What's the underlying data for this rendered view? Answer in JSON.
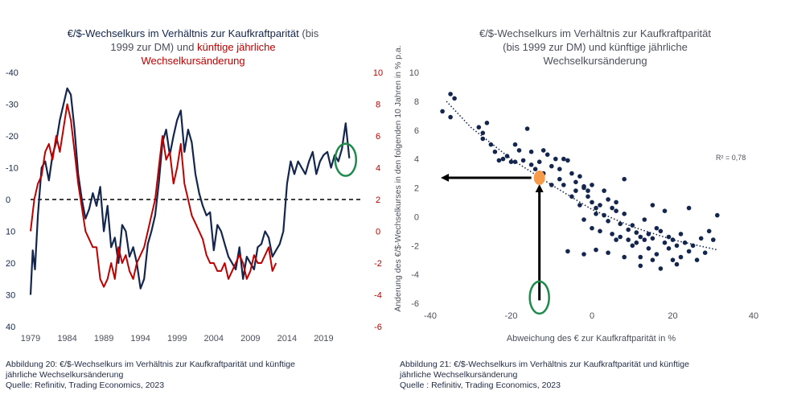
{
  "chart_data": [
    {
      "type": "line",
      "title_navy_1": "€/$-Wechselkurs im Verhältnis zur Kaufkraftparität",
      "title_gray_1": "(bis",
      "title_gray_2": "1999 zur DM) und",
      "title_red_1": "künftige jährliche",
      "title_red_2": "Wechselkursänderung",
      "x_ticks": [
        "1979",
        "1984",
        "1989",
        "1994",
        "1999",
        "2004",
        "2009",
        "2014",
        "2019"
      ],
      "left_axis_ticks": [
        "-40",
        "-30",
        "-20",
        "-10",
        "0",
        "10",
        "20",
        "30",
        "40"
      ],
      "right_axis_ticks": [
        "10",
        "8",
        "6",
        "4",
        "2",
        "0",
        "-2",
        "-4",
        "-6"
      ],
      "ylim_left": [
        40,
        -40
      ],
      "ylim_right": [
        -6,
        10
      ],
      "xlim": [
        1979,
        2024
      ],
      "series": [
        {
          "name": "€/$-Wechselkurs vs. Kaufkraftparität",
          "axis": "left",
          "color": "#14264d",
          "x": [
            1979,
            1979.3,
            1979.6,
            1980,
            1980.5,
            1981,
            1981.5,
            1982,
            1982.5,
            1983,
            1983.5,
            1984,
            1984.5,
            1985,
            1985.5,
            1986,
            1986.5,
            1987,
            1987.5,
            1988,
            1988.5,
            1989,
            1989.5,
            1990,
            1990.5,
            1991,
            1991.5,
            1992,
            1992.5,
            1993,
            1993.5,
            1994,
            1994.5,
            1995,
            1995.5,
            1996,
            1996.5,
            1997,
            1997.5,
            1998,
            1998.5,
            1999,
            1999.5,
            2000,
            2000.5,
            2001,
            2001.5,
            2002,
            2002.5,
            2003,
            2003.5,
            2004,
            2004.5,
            2005,
            2005.5,
            2006,
            2006.5,
            2007,
            2007.5,
            2008,
            2008.5,
            2009,
            2009.5,
            2010,
            2010.5,
            2011,
            2011.5,
            2012,
            2012.5,
            2013,
            2013.5,
            2014,
            2014.5,
            2015,
            2015.5,
            2016,
            2016.5,
            2017,
            2017.5,
            2018,
            2018.5,
            2019,
            2019.5,
            2020,
            2020.5,
            2021,
            2021.5,
            2022,
            2022.5
          ],
          "values": [
            30,
            16,
            22,
            5,
            -10,
            -12,
            -6,
            -14,
            -18,
            -25,
            -30,
            -35,
            -33,
            -22,
            -8,
            0,
            6,
            3,
            -2,
            2,
            -4,
            10,
            2,
            15,
            12,
            20,
            8,
            10,
            18,
            15,
            20,
            28,
            25,
            14,
            10,
            5,
            -5,
            -18,
            -22,
            -14,
            -20,
            -25,
            -28,
            -15,
            -22,
            -18,
            -8,
            -2,
            2,
            5,
            4,
            16,
            8,
            10,
            14,
            18,
            20,
            22,
            15,
            25,
            18,
            20,
            22,
            15,
            14,
            10,
            12,
            18,
            16,
            14,
            10,
            -5,
            -12,
            -8,
            -12,
            -10,
            -8,
            -12,
            -15,
            -8,
            -12,
            -14,
            -15,
            -10,
            -14,
            -12,
            -16,
            -24,
            -13
          ]
        },
        {
          "name": "künftige jährliche Wechselkursänderung",
          "axis": "right",
          "color": "#c00000",
          "x": [
            1979,
            1979.5,
            1980,
            1980.5,
            1981,
            1981.5,
            1982,
            1982.5,
            1983,
            1983.5,
            1984,
            1984.5,
            1985,
            1985.5,
            1986,
            1986.5,
            1987,
            1987.5,
            1988,
            1988.5,
            1989,
            1989.5,
            1990,
            1990.5,
            1991,
            1991.5,
            1992,
            1992.5,
            1993,
            1993.5,
            1994,
            1994.5,
            1995,
            1995.5,
            1996,
            1996.5,
            1997,
            1997.5,
            1998,
            1998.5,
            1999,
            1999.5,
            2000,
            2000.5,
            2001,
            2001.5,
            2002,
            2002.5,
            2003,
            2003.5,
            2004,
            2004.5,
            2005,
            2005.5,
            2006,
            2006.5,
            2007,
            2007.5,
            2008,
            2008.5,
            2009,
            2009.5,
            2010,
            2010.5,
            2011,
            2011.5,
            2012,
            2012.5
          ],
          "values": [
            0,
            2,
            3,
            3.5,
            5,
            5.5,
            4.5,
            6,
            5,
            6.5,
            8,
            7,
            5,
            3,
            1.5,
            0,
            -0.5,
            -1,
            -1,
            -3,
            -3.5,
            -3,
            -2,
            -3,
            -1,
            -2,
            -1.5,
            -2.5,
            -3,
            -2,
            -1.5,
            -1,
            0,
            1,
            2,
            4,
            6,
            4.5,
            5,
            3,
            4,
            5.5,
            3,
            2,
            1,
            0.5,
            0,
            -0.5,
            -1.5,
            -2,
            -2,
            -2.5,
            -2.5,
            -2,
            -3,
            -2.5,
            -2,
            -1.5,
            -2,
            -3,
            -2.5,
            -1.5,
            -2,
            -2,
            -1.5,
            -1,
            -2.5,
            -2
          ]
        }
      ],
      "zero_line": true,
      "annotation": "green ellipse around latest navy values (2021-2023)",
      "caption_line1": "Abbildung 20: €/$-Wechselkurs im Verhältnis zur Kaufkraftparität und künftige",
      "caption_line2": "jährliche Wechselkursänderung",
      "caption_line3": "Quelle: Refinitiv, Trading Economics, 2023"
    },
    {
      "type": "scatter",
      "title_line1": "€/$-Wechselkurs im Verhältnis zur Kaufkraftparität",
      "title_line2": "(bis 1999 zur DM) und  künftige jährliche",
      "title_line3": "Wechselkursänderung",
      "xlabel": "Abweichung des €  zur Kaufkraftparität in %",
      "ylabel": "Änderung des €/$-Wechselkurses in den folgenden 10 Jahren in % p.a.",
      "x_ticks": [
        "-40",
        "-20",
        "0",
        "20",
        "40"
      ],
      "y_ticks": [
        "10",
        "8",
        "6",
        "4",
        "2",
        "0",
        "-2",
        "-4",
        "-6"
      ],
      "xlim": [
        -40,
        40
      ],
      "ylim": [
        -6,
        10
      ],
      "r2_label": "R² = 0,78",
      "trendline": [
        [
          -36,
          8
        ],
        [
          -30,
          6.2
        ],
        [
          -20,
          4
        ],
        [
          -10,
          2.2
        ],
        [
          0,
          0.5
        ],
        [
          10,
          -0.7
        ],
        [
          20,
          -1.6
        ],
        [
          31,
          -2.3
        ]
      ],
      "highlight_point": [
        -13,
        2.7
      ],
      "arrows": [
        "vertical arrow from (-13,-5.8) up to highlight point",
        "horizontal arrow from highlight point left to (-40,2.7)"
      ],
      "points": [
        [
          -37,
          7.3
        ],
        [
          -35,
          8.5
        ],
        [
          -34,
          8.2
        ],
        [
          -35,
          6.9
        ],
        [
          -28,
          6.2
        ],
        [
          -27,
          5.4
        ],
        [
          -27,
          5.8
        ],
        [
          -26,
          6.5
        ],
        [
          -25,
          5.0
        ],
        [
          -24,
          4.5
        ],
        [
          -22,
          4.0
        ],
        [
          -21,
          4.2
        ],
        [
          -23,
          3.9
        ],
        [
          -20,
          3.8
        ],
        [
          -19,
          5.0
        ],
        [
          -19,
          3.8
        ],
        [
          -18,
          4.6
        ],
        [
          -17,
          3.9
        ],
        [
          -16,
          6.1
        ],
        [
          -15,
          4.5
        ],
        [
          -15,
          3.6
        ],
        [
          -14,
          3.3
        ],
        [
          -13,
          3.8
        ],
        [
          -12,
          4.6
        ],
        [
          -12,
          3.0
        ],
        [
          -11,
          4.3
        ],
        [
          -10,
          3.5
        ],
        [
          -10,
          2.2
        ],
        [
          -9,
          4.0
        ],
        [
          -8,
          3.3
        ],
        [
          -8,
          2.6
        ],
        [
          -7,
          4.0
        ],
        [
          -7,
          2.2
        ],
        [
          -6,
          3.9
        ],
        [
          -5,
          3.0
        ],
        [
          -5,
          1.4
        ],
        [
          -4,
          2.4
        ],
        [
          -4,
          1.8
        ],
        [
          -3,
          2.8
        ],
        [
          -3,
          0.8
        ],
        [
          -2,
          2.0
        ],
        [
          -2,
          -0.2
        ],
        [
          -1,
          1.4
        ],
        [
          -1,
          1.8
        ],
        [
          0,
          1.0
        ],
        [
          0,
          -0.8
        ],
        [
          0,
          2.2
        ],
        [
          1,
          0.6
        ],
        [
          1,
          0.2
        ],
        [
          2,
          0.8
        ],
        [
          2,
          -1.0
        ],
        [
          3,
          1.8
        ],
        [
          3,
          0.1
        ],
        [
          4,
          1.2
        ],
        [
          4,
          -0.3
        ],
        [
          5,
          0.6
        ],
        [
          5,
          -1.2
        ],
        [
          6,
          0.4
        ],
        [
          6,
          1.0
        ],
        [
          7,
          -0.5
        ],
        [
          7,
          -1.4
        ],
        [
          8,
          0.2
        ],
        [
          8,
          2.6
        ],
        [
          9,
          -0.9
        ],
        [
          9,
          -1.6
        ],
        [
          10,
          -0.6
        ],
        [
          10,
          -2.0
        ],
        [
          11,
          -1.1
        ],
        [
          11,
          -1.8
        ],
        [
          12,
          -1.4
        ],
        [
          12,
          -2.8
        ],
        [
          13,
          -0.2
        ],
        [
          13,
          -1.6
        ],
        [
          14,
          -1.2
        ],
        [
          14,
          -2.2
        ],
        [
          15,
          0.8
        ],
        [
          15,
          -1.5
        ],
        [
          16,
          -0.8
        ],
        [
          16,
          -2.6
        ],
        [
          17,
          -1.0
        ],
        [
          17,
          -3.6
        ],
        [
          18,
          -1.8
        ],
        [
          18,
          0.4
        ],
        [
          19,
          -1.4
        ],
        [
          19,
          -2.2
        ],
        [
          20,
          -1.6
        ],
        [
          20,
          -3.0
        ],
        [
          21,
          -2.0
        ],
        [
          22,
          -1.2
        ],
        [
          22,
          -2.8
        ],
        [
          23,
          -1.8
        ],
        [
          24,
          -2.4
        ],
        [
          24,
          0.6
        ],
        [
          25,
          -2.0
        ],
        [
          26,
          -3.0
        ],
        [
          27,
          -1.5
        ],
        [
          28,
          -2.5
        ],
        [
          29,
          -1.0
        ],
        [
          30,
          -1.6
        ],
        [
          31,
          0.1
        ],
        [
          -6,
          -2.4
        ],
        [
          -2,
          -2.6
        ],
        [
          4,
          -2.5
        ],
        [
          8,
          -2.8
        ],
        [
          12,
          -3.4
        ],
        [
          15,
          -3.0
        ],
        [
          21,
          -3.3
        ],
        [
          -2,
          2.1
        ],
        [
          1,
          -2.3
        ],
        [
          6,
          -1.6
        ]
      ],
      "caption_line1": "Abbildung 21: €/$-Wechselkurs im Verhältnis zur Kaufkraftparität und künftige",
      "caption_line2": "jährliche Wechselkursänderung",
      "caption_line3": "Quelle : Refinitiv, Trading Economics, 2023"
    }
  ]
}
